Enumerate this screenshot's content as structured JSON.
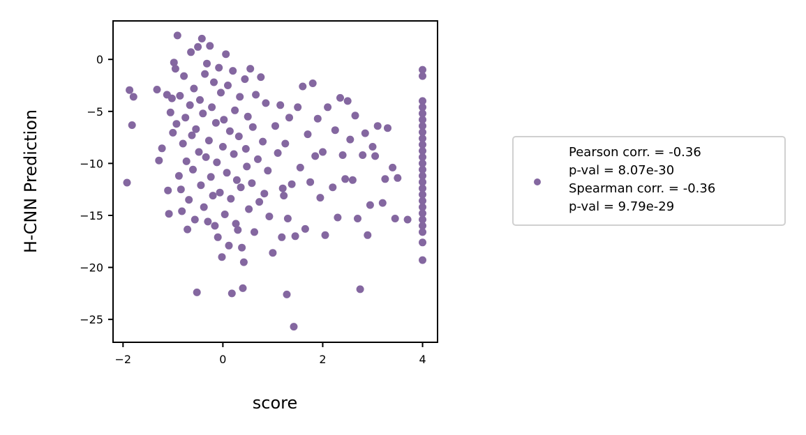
{
  "chart_data": {
    "type": "scatter",
    "title": "",
    "xlabel": "score",
    "ylabel": "H-CNN Prediction",
    "xlim": [
      -2.2,
      4.3
    ],
    "ylim": [
      -27.2,
      3.7
    ],
    "xticks": [
      -2,
      0,
      2,
      4
    ],
    "yticks": [
      0,
      -5,
      -10,
      -15,
      -20,
      -25
    ],
    "grid": false,
    "legend_position": "right, outside plot",
    "color": "#8467a0",
    "legend": {
      "lines": [
        "Pearson corr. = -0.36",
        "p-val = 8.07e-30",
        "Spearman corr. = -0.36",
        "p-val = 9.79e-29"
      ]
    },
    "series": [
      {
        "points": [
          [
            -1.92,
            -11.85
          ],
          [
            -1.87,
            -2.95
          ],
          [
            -1.82,
            -6.32
          ],
          [
            -1.79,
            -3.6
          ],
          [
            -1.32,
            -2.9
          ],
          [
            -1.28,
            -9.72
          ],
          [
            -1.22,
            -8.55
          ],
          [
            -1.12,
            -3.4
          ],
          [
            -1.1,
            -12.6
          ],
          [
            -1.08,
            -14.85
          ],
          [
            -1.05,
            -5.1
          ],
          [
            -1.02,
            -3.75
          ],
          [
            -1.0,
            -7.05
          ],
          [
            -0.98,
            -0.3
          ],
          [
            -0.95,
            -0.9
          ],
          [
            -0.93,
            -6.2
          ],
          [
            -0.91,
            2.3
          ],
          [
            -0.88,
            -11.2
          ],
          [
            -0.86,
            -3.5
          ],
          [
            -0.84,
            -12.5
          ],
          [
            -0.82,
            -14.6
          ],
          [
            -0.8,
            -8.1
          ],
          [
            -0.78,
            -1.6
          ],
          [
            -0.75,
            -5.6
          ],
          [
            -0.73,
            -9.8
          ],
          [
            -0.71,
            -16.35
          ],
          [
            -0.68,
            -13.5
          ],
          [
            -0.66,
            -4.4
          ],
          [
            -0.64,
            0.7
          ],
          [
            -0.62,
            -7.3
          ],
          [
            -0.6,
            -10.6
          ],
          [
            -0.58,
            -2.8
          ],
          [
            -0.56,
            -15.4
          ],
          [
            -0.54,
            -6.7
          ],
          [
            -0.52,
            -22.4
          ],
          [
            -0.5,
            1.2
          ],
          [
            -0.48,
            -8.9
          ],
          [
            -0.46,
            -3.9
          ],
          [
            -0.44,
            -12.1
          ],
          [
            -0.42,
            2.0
          ],
          [
            -0.4,
            -5.2
          ],
          [
            -0.38,
            -14.2
          ],
          [
            -0.36,
            -1.4
          ],
          [
            -0.34,
            -9.4
          ],
          [
            -0.32,
            -0.4
          ],
          [
            -0.3,
            -15.6
          ],
          [
            -0.28,
            -7.8
          ],
          [
            -0.26,
            1.3
          ],
          [
            -0.24,
            -11.3
          ],
          [
            -0.22,
            -4.6
          ],
          [
            -0.2,
            -13.1
          ],
          [
            -0.18,
            -2.2
          ],
          [
            -0.16,
            -16.0
          ],
          [
            -0.14,
            -6.1
          ],
          [
            -0.12,
            -9.9
          ],
          [
            -0.1,
            -17.1
          ],
          [
            -0.08,
            -0.8
          ],
          [
            -0.06,
            -12.8
          ],
          [
            -0.04,
            -3.2
          ],
          [
            -0.02,
            -19.0
          ],
          [
            0.0,
            -8.4
          ],
          [
            0.02,
            -5.8
          ],
          [
            0.04,
            -14.9
          ],
          [
            0.06,
            0.5
          ],
          [
            0.08,
            -10.9
          ],
          [
            0.1,
            -2.5
          ],
          [
            0.12,
            -17.9
          ],
          [
            0.14,
            -6.9
          ],
          [
            0.16,
            -13.4
          ],
          [
            0.18,
            -22.5
          ],
          [
            0.2,
            -1.1
          ],
          [
            0.22,
            -9.1
          ],
          [
            0.24,
            -4.9
          ],
          [
            0.26,
            -15.8
          ],
          [
            0.28,
            -11.6
          ],
          [
            0.3,
            -16.4
          ],
          [
            0.32,
            -7.4
          ],
          [
            0.34,
            -3.6
          ],
          [
            0.36,
            -12.3
          ],
          [
            0.38,
            -18.1
          ],
          [
            0.4,
            -22.0
          ],
          [
            0.42,
            -19.5
          ],
          [
            0.44,
            -1.9
          ],
          [
            0.46,
            -8.6
          ],
          [
            0.48,
            -10.3
          ],
          [
            0.5,
            -5.5
          ],
          [
            0.52,
            -14.4
          ],
          [
            0.55,
            -0.9
          ],
          [
            0.58,
            -11.9
          ],
          [
            0.6,
            -6.5
          ],
          [
            0.63,
            -16.6
          ],
          [
            0.66,
            -3.4
          ],
          [
            0.7,
            -9.6
          ],
          [
            0.73,
            -13.7
          ],
          [
            0.76,
            -1.7
          ],
          [
            0.8,
            -7.9
          ],
          [
            0.83,
            -12.9
          ],
          [
            0.86,
            -4.2
          ],
          [
            0.9,
            -10.7
          ],
          [
            0.93,
            -15.1
          ],
          [
            1.0,
            -18.6
          ],
          [
            1.05,
            -6.4
          ],
          [
            1.1,
            -9.0
          ],
          [
            1.15,
            -4.4
          ],
          [
            1.18,
            -17.1
          ],
          [
            1.2,
            -12.4
          ],
          [
            1.22,
            -13.1
          ],
          [
            1.25,
            -8.1
          ],
          [
            1.28,
            -22.6
          ],
          [
            1.3,
            -15.3
          ],
          [
            1.33,
            -5.6
          ],
          [
            1.38,
            -12.0
          ],
          [
            1.42,
            -25.7
          ],
          [
            1.45,
            -17.0
          ],
          [
            1.5,
            -4.6
          ],
          [
            1.55,
            -10.4
          ],
          [
            1.6,
            -2.6
          ],
          [
            1.65,
            -16.3
          ],
          [
            1.7,
            -7.2
          ],
          [
            1.75,
            -11.8
          ],
          [
            1.8,
            -2.3
          ],
          [
            1.85,
            -9.3
          ],
          [
            1.9,
            -5.7
          ],
          [
            1.95,
            -13.3
          ],
          [
            2.0,
            -8.9
          ],
          [
            2.05,
            -16.9
          ],
          [
            2.1,
            -4.6
          ],
          [
            2.2,
            -12.3
          ],
          [
            2.25,
            -6.8
          ],
          [
            2.3,
            -15.2
          ],
          [
            2.35,
            -3.7
          ],
          [
            2.4,
            -9.2
          ],
          [
            2.45,
            -11.5
          ],
          [
            2.5,
            -4.0
          ],
          [
            2.55,
            -7.7
          ],
          [
            2.6,
            -11.6
          ],
          [
            2.65,
            -5.4
          ],
          [
            2.7,
            -15.3
          ],
          [
            2.75,
            -22.1
          ],
          [
            2.8,
            -9.2
          ],
          [
            2.85,
            -7.1
          ],
          [
            2.9,
            -16.9
          ],
          [
            2.95,
            -14.0
          ],
          [
            3.0,
            -8.4
          ],
          [
            3.05,
            -9.3
          ],
          [
            3.1,
            -6.4
          ],
          [
            3.2,
            -13.8
          ],
          [
            3.25,
            -11.5
          ],
          [
            3.3,
            -6.6
          ],
          [
            3.4,
            -10.4
          ],
          [
            3.45,
            -15.3
          ],
          [
            3.5,
            -11.4
          ],
          [
            3.7,
            -15.4
          ],
          [
            4.0,
            -1.0
          ],
          [
            4.0,
            -1.6
          ],
          [
            4.0,
            -4.0
          ],
          [
            4.0,
            -4.6
          ],
          [
            4.0,
            -5.2
          ],
          [
            4.0,
            -5.8
          ],
          [
            4.0,
            -6.4
          ],
          [
            4.0,
            -7.0
          ],
          [
            4.0,
            -7.6
          ],
          [
            4.0,
            -8.2
          ],
          [
            4.0,
            -8.8
          ],
          [
            4.0,
            -9.4
          ],
          [
            4.0,
            -10.0
          ],
          [
            4.0,
            -10.6
          ],
          [
            4.0,
            -11.2
          ],
          [
            4.0,
            -11.8
          ],
          [
            4.0,
            -12.4
          ],
          [
            4.0,
            -13.0
          ],
          [
            4.0,
            -13.6
          ],
          [
            4.0,
            -14.2
          ],
          [
            4.0,
            -14.8
          ],
          [
            4.0,
            -15.4
          ],
          [
            4.0,
            -16.0
          ],
          [
            4.0,
            -16.6
          ],
          [
            4.0,
            -17.6
          ],
          [
            4.0,
            -19.3
          ]
        ]
      }
    ]
  }
}
